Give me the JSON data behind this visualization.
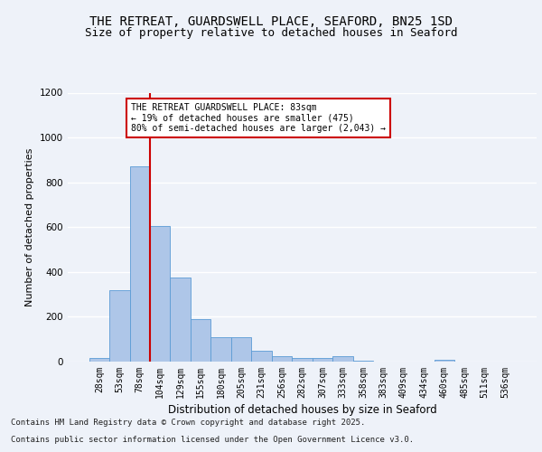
{
  "title_line1": "THE RETREAT, GUARDSWELL PLACE, SEAFORD, BN25 1SD",
  "title_line2": "Size of property relative to detached houses in Seaford",
  "xlabel": "Distribution of detached houses by size in Seaford",
  "ylabel": "Number of detached properties",
  "categories": [
    "28sqm",
    "53sqm",
    "78sqm",
    "104sqm",
    "129sqm",
    "155sqm",
    "180sqm",
    "205sqm",
    "231sqm",
    "256sqm",
    "282sqm",
    "307sqm",
    "333sqm",
    "358sqm",
    "383sqm",
    "409sqm",
    "434sqm",
    "460sqm",
    "485sqm",
    "511sqm",
    "536sqm"
  ],
  "values": [
    15,
    320,
    870,
    605,
    375,
    190,
    110,
    110,
    47,
    23,
    18,
    18,
    23,
    5,
    0,
    0,
    0,
    10,
    0,
    0,
    0
  ],
  "bar_color": "#aec6e8",
  "bar_edge_color": "#5b9bd5",
  "vline_color": "#cc0000",
  "annotation_text": "THE RETREAT GUARDSWELL PLACE: 83sqm\n← 19% of detached houses are smaller (475)\n80% of semi-detached houses are larger (2,043) →",
  "annotation_box_color": "#ffffff",
  "annotation_box_edge": "#cc0000",
  "ylim": [
    0,
    1200
  ],
  "yticks": [
    0,
    200,
    400,
    600,
    800,
    1000,
    1200
  ],
  "footer_line1": "Contains HM Land Registry data © Crown copyright and database right 2025.",
  "footer_line2": "Contains public sector information licensed under the Open Government Licence v3.0.",
  "bg_color": "#eef2f9",
  "plot_bg_color": "#eef2f9",
  "grid_color": "#ffffff",
  "title_fontsize": 10,
  "subtitle_fontsize": 9,
  "axis_label_fontsize": 8,
  "tick_fontsize": 7,
  "footer_fontsize": 6.5,
  "annot_fontsize": 7
}
